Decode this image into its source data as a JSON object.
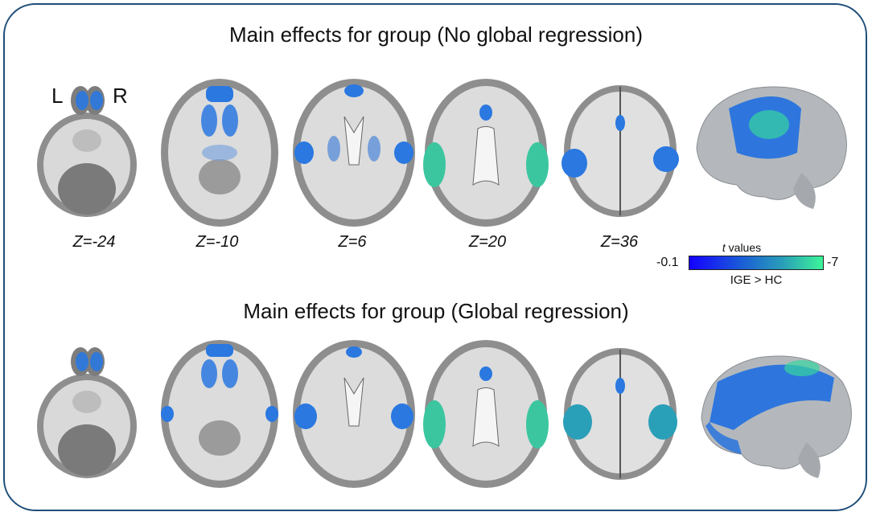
{
  "figure": {
    "top_title": "Main effects for group (No global regression)",
    "bottom_title": "Main effects for group (Global regression)",
    "hemisphere_left": "L",
    "hemisphere_right": "R",
    "slices": [
      "Z=-24",
      "Z=-10",
      "Z=6",
      "Z=20",
      "Z=36"
    ]
  },
  "colorbar": {
    "title_italic": "t",
    "title_rest": " values",
    "min_label": "-0.1",
    "max_label": "-7",
    "contrast_label": "IGE > HC",
    "color_low": "#1400ff",
    "color_high": "#3cf59a"
  },
  "colors": {
    "frame": "#1f4e79",
    "brain_gray": "#9a9a9a",
    "white_matter": "#e6e6e6",
    "activation": "#1f6fe0",
    "activation_peak": "#36d6a0",
    "surface": "#b4b8bc"
  }
}
